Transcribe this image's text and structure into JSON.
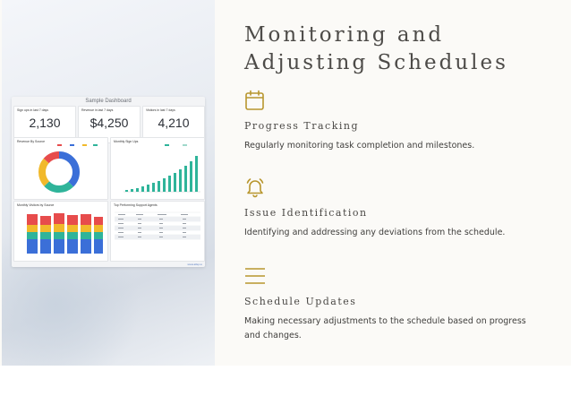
{
  "title": "Monitoring and Adjusting Schedules",
  "accent_color": "#b8962e",
  "dashboard": {
    "title": "Sample Dashboard",
    "stats": [
      {
        "label": "Sign ups in last 7 days",
        "value": "2,130"
      },
      {
        "label": "Revenue in last 7 days",
        "value": "$4,250"
      },
      {
        "label": "Visitors in last 7 days",
        "value": "4,210"
      }
    ],
    "revenue_by_source": {
      "title": "Revenue By Source"
    },
    "monthly_signups": {
      "title": "Monthly Sign Ups"
    },
    "monthly_visitors": {
      "title": "Monthly Visitors by Source"
    },
    "support_agents": {
      "title": "Top Performing Support Agents"
    },
    "footer": "www.allsp.io"
  },
  "sections": [
    {
      "icon": "calendar-icon",
      "title": "Progress Tracking",
      "description": "Regularly monitoring task completion and milestones."
    },
    {
      "icon": "bell-icon",
      "title": "Issue Identification",
      "description": "Identifying and addressing any deviations from the schedule."
    },
    {
      "icon": "menu-lines-icon",
      "title": "Schedule Updates",
      "description": "Making necessary adjustments to the schedule based on progress and changes."
    }
  ]
}
